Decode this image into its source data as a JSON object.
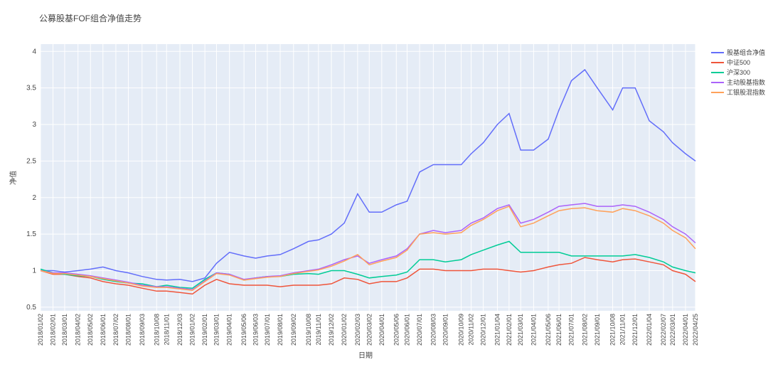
{
  "chart_data": {
    "type": "line",
    "title": "公募股基FOF组合净值走势",
    "x_label": "日期",
    "y_label": "净值",
    "x": [
      "2018/01/02",
      "2018/02/01",
      "2018/03/01",
      "2018/04/02",
      "2018/05/02",
      "2018/06/01",
      "2018/07/02",
      "2018/08/01",
      "2018/09/03",
      "2018/10/08",
      "2018/11/01",
      "2018/12/03",
      "2019/01/02",
      "2019/02/01",
      "2019/03/01",
      "2019/04/01",
      "2019/05/06",
      "2019/06/03",
      "2019/07/01",
      "2019/08/01",
      "2019/09/02",
      "2019/10/08",
      "2019/11/01",
      "2019/12/02",
      "2020/01/02",
      "2020/02/03",
      "2020/03/02",
      "2020/04/01",
      "2020/05/06",
      "2020/06/01",
      "2020/07/01",
      "2020/08/03",
      "2020/09/01",
      "2020/10/09",
      "2020/11/02",
      "2020/12/01",
      "2021/01/04",
      "2021/02/01",
      "2021/03/01",
      "2021/04/01",
      "2021/05/06",
      "2021/06/01",
      "2021/07/01",
      "2021/08/02",
      "2021/09/01",
      "2021/10/08",
      "2021/11/01",
      "2021/12/01",
      "2022/01/04",
      "2022/02/07",
      "2022/03/01",
      "2022/04/01",
      "2022/04/25"
    ],
    "xlim": [
      "2018/01/02",
      "2022/04/25"
    ],
    "ylim": [
      0.45,
      4.1
    ],
    "yticks": [
      0.5,
      1,
      1.5,
      2,
      2.5,
      3,
      3.5,
      4
    ],
    "grid": true,
    "legend": "right",
    "series": [
      {
        "name": "股基组合净值",
        "color": "#636efa",
        "values": [
          1.0,
          1.0,
          0.98,
          1.0,
          1.02,
          1.05,
          1.0,
          0.97,
          0.92,
          0.88,
          0.87,
          0.88,
          0.85,
          0.9,
          1.1,
          1.25,
          1.2,
          1.17,
          1.2,
          1.22,
          1.3,
          1.4,
          1.42,
          1.5,
          1.65,
          2.05,
          1.8,
          1.8,
          1.9,
          1.95,
          2.35,
          2.45,
          2.45,
          2.45,
          2.6,
          2.75,
          3.0,
          3.15,
          2.65,
          2.65,
          2.8,
          3.2,
          3.6,
          3.75,
          3.5,
          3.2,
          3.5,
          3.5,
          3.05,
          2.9,
          2.75,
          2.6,
          2.5
        ]
      },
      {
        "name": "中证500",
        "color": "#EF553B",
        "values": [
          1.0,
          0.95,
          0.95,
          0.92,
          0.9,
          0.85,
          0.82,
          0.8,
          0.76,
          0.72,
          0.72,
          0.7,
          0.68,
          0.8,
          0.88,
          0.82,
          0.8,
          0.8,
          0.8,
          0.78,
          0.8,
          0.8,
          0.8,
          0.82,
          0.9,
          0.88,
          0.82,
          0.85,
          0.85,
          0.9,
          1.02,
          1.02,
          1.0,
          1.0,
          1.0,
          1.02,
          1.02,
          1.0,
          0.98,
          1.0,
          1.05,
          1.08,
          1.1,
          1.18,
          1.15,
          1.12,
          1.15,
          1.16,
          1.12,
          1.08,
          1.0,
          0.95,
          0.85
        ]
      },
      {
        "name": "沪深300",
        "color": "#00cc96",
        "values": [
          1.02,
          0.97,
          0.95,
          0.93,
          0.92,
          0.88,
          0.85,
          0.83,
          0.82,
          0.78,
          0.8,
          0.77,
          0.76,
          0.88,
          0.97,
          0.95,
          0.87,
          0.9,
          0.92,
          0.92,
          0.95,
          0.96,
          0.95,
          1.0,
          1.0,
          0.95,
          0.9,
          0.92,
          0.94,
          0.98,
          1.15,
          1.15,
          1.12,
          1.15,
          1.22,
          1.28,
          1.35,
          1.4,
          1.25,
          1.25,
          1.25,
          1.25,
          1.2,
          1.2,
          1.2,
          1.2,
          1.2,
          1.22,
          1.18,
          1.12,
          1.05,
          1.0,
          0.97
        ]
      },
      {
        "name": "主动股基指数",
        "color": "#ab63fa",
        "values": [
          1.0,
          0.97,
          0.97,
          0.95,
          0.93,
          0.9,
          0.87,
          0.84,
          0.8,
          0.78,
          0.78,
          0.76,
          0.74,
          0.86,
          0.97,
          0.95,
          0.88,
          0.9,
          0.92,
          0.93,
          0.97,
          1.0,
          1.02,
          1.08,
          1.15,
          1.2,
          1.1,
          1.15,
          1.2,
          1.3,
          1.5,
          1.55,
          1.52,
          1.55,
          1.65,
          1.72,
          1.85,
          1.9,
          1.65,
          1.7,
          1.8,
          1.88,
          1.9,
          1.92,
          1.88,
          1.88,
          1.9,
          1.88,
          1.8,
          1.7,
          1.6,
          1.5,
          1.38
        ]
      },
      {
        "name": "工银股混指数",
        "color": "#FFA15A",
        "values": [
          1.0,
          0.96,
          0.96,
          0.94,
          0.92,
          0.89,
          0.86,
          0.83,
          0.79,
          0.77,
          0.77,
          0.75,
          0.73,
          0.85,
          0.96,
          0.94,
          0.87,
          0.89,
          0.91,
          0.92,
          0.96,
          0.99,
          1.01,
          1.06,
          1.13,
          1.22,
          1.08,
          1.13,
          1.18,
          1.28,
          1.5,
          1.52,
          1.5,
          1.52,
          1.62,
          1.7,
          1.82,
          1.88,
          1.6,
          1.65,
          1.75,
          1.82,
          1.85,
          1.86,
          1.82,
          1.8,
          1.85,
          1.82,
          1.75,
          1.65,
          1.55,
          1.45,
          1.3
        ]
      }
    ]
  }
}
